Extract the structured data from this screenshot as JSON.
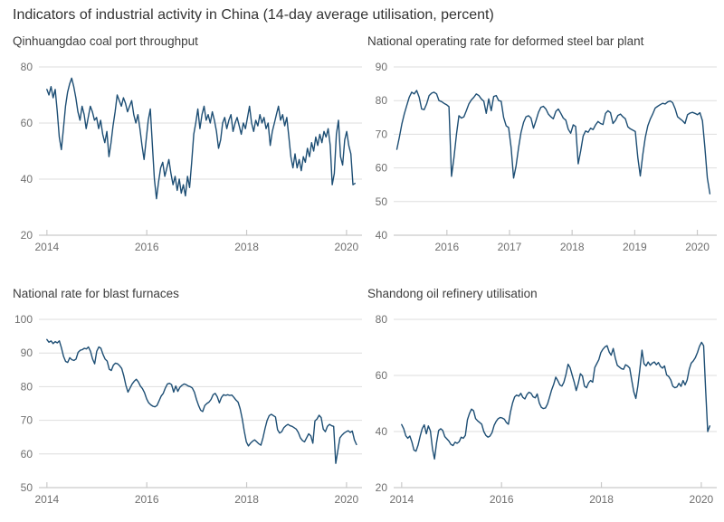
{
  "page": {
    "title": "Indicators of industrial activity in China (14-day average utilisation, percent)"
  },
  "colors": {
    "line": "#1d4e74",
    "grid": "#dedede",
    "axis": "#c9c9c9",
    "tick_label": "#6f6f6f",
    "title": "#333333",
    "subtitle": "#3d3d3d",
    "background": "#ffffff"
  },
  "chart_data": [
    {
      "type": "line",
      "title": "Qinhuangdao coal port throughput",
      "xlabel": "",
      "ylabel": "",
      "legend": "none",
      "grid": "horizontal",
      "xlim": [
        2013.84,
        2020.31
      ],
      "ylim": [
        20,
        80
      ],
      "x_ticks": [
        2014,
        2016,
        2018,
        2020
      ],
      "y_ticks": [
        20,
        40,
        60,
        80
      ],
      "x_start": 2014.0,
      "x_end": 2020.17,
      "values": [
        72,
        70,
        73,
        69,
        72,
        64,
        55,
        50.5,
        58,
        66,
        71,
        74,
        76,
        73,
        69,
        64,
        61,
        66,
        63,
        58,
        62,
        66,
        64,
        61,
        62,
        58,
        61,
        56,
        53,
        57,
        48,
        53,
        59,
        64,
        70,
        68,
        66,
        69,
        67,
        64,
        66,
        68,
        63,
        60,
        63,
        58,
        52,
        47,
        54,
        61,
        65,
        52,
        40,
        33,
        39,
        44,
        46,
        41,
        44,
        47,
        42,
        38,
        41,
        36,
        40,
        35,
        38,
        34,
        41,
        37,
        46,
        56,
        60,
        65,
        58,
        63,
        66,
        61,
        63,
        60,
        64,
        61,
        57,
        51,
        54,
        60,
        62,
        58,
        61,
        63,
        57,
        60,
        62,
        59,
        56,
        60,
        58,
        62,
        66,
        60,
        57,
        61,
        59,
        63,
        60,
        62,
        58,
        60,
        52,
        57,
        60,
        63,
        66,
        61,
        63,
        59,
        62,
        55,
        48,
        44,
        49,
        44,
        47,
        43,
        48,
        46,
        51,
        48,
        53,
        50,
        55,
        52,
        56,
        53,
        57,
        55,
        58,
        52,
        38,
        42,
        56,
        61,
        48,
        45,
        54,
        57,
        52,
        49,
        38,
        38.5
      ]
    },
    {
      "type": "line",
      "title": "National operating rate for deformed steel bar plant",
      "xlabel": "",
      "ylabel": "",
      "legend": "none",
      "grid": "horizontal",
      "xlim": [
        2015.15,
        2020.31
      ],
      "ylim": [
        40,
        90
      ],
      "x_ticks": [
        2016,
        2017,
        2018,
        2019,
        2020
      ],
      "y_ticks": [
        40,
        50,
        60,
        70,
        80,
        90
      ],
      "x_start": 2015.2,
      "x_end": 2020.2,
      "values": [
        65.5,
        69,
        73,
        76,
        78.5,
        81,
        82.5,
        82,
        83,
        81,
        77.5,
        77.3,
        79,
        81.5,
        82.2,
        82.5,
        82,
        80,
        79.7,
        79.2,
        78.8,
        78.2,
        57.5,
        63,
        70,
        75.5,
        74.8,
        75.2,
        77,
        79,
        80.2,
        81,
        82,
        81.5,
        80.5,
        79.8,
        76.2,
        80.5,
        77,
        81.2,
        81.5,
        80,
        79.8,
        75,
        72.5,
        72,
        66,
        57,
        60.5,
        66,
        70.5,
        73.5,
        75.2,
        75.5,
        74.8,
        71.8,
        74,
        76.5,
        78,
        78.3,
        77.5,
        76,
        75.2,
        74.6,
        76.8,
        77.5,
        76.2,
        74.8,
        74.2,
        71.5,
        70.3,
        72.8,
        72.3,
        61.2,
        65,
        69.5,
        71,
        70.6,
        71.8,
        71.4,
        72.8,
        73.8,
        73.2,
        72.9,
        76.2,
        77,
        76.4,
        73.2,
        74.1,
        75.6,
        76,
        75.2,
        74.6,
        72.2,
        71.6,
        71.2,
        70.8,
        63,
        57.6,
        64,
        69,
        72.5,
        74.5,
        76,
        77.8,
        78.3,
        78.8,
        79.2,
        79,
        79.6,
        79.9,
        79.4,
        77.6,
        75.2,
        74.6,
        74,
        73.2,
        75.8,
        76.3,
        76.5,
        76.2,
        75.8,
        76.4,
        74,
        66,
        57,
        52.3
      ]
    },
    {
      "type": "line",
      "title": "National rate for blast furnaces",
      "xlabel": "",
      "ylabel": "",
      "legend": "none",
      "grid": "horizontal",
      "xlim": [
        2013.84,
        2020.31
      ],
      "ylim": [
        50,
        100
      ],
      "x_ticks": [
        2014,
        2016,
        2018,
        2020
      ],
      "y_ticks": [
        50,
        60,
        70,
        80,
        90,
        100
      ],
      "x_start": 2014.0,
      "x_end": 2020.2,
      "values": [
        94,
        93.2,
        93.6,
        92.8,
        93.4,
        93,
        93.6,
        91.5,
        89,
        87.5,
        87.2,
        88.6,
        88,
        87.8,
        88.2,
        90.2,
        90.8,
        91,
        91.4,
        91.2,
        91.8,
        90.5,
        88.2,
        86.8,
        90.5,
        91.8,
        91.4,
        89.6,
        88.2,
        87.6,
        85.2,
        84.8,
        86.4,
        87,
        86.8,
        86.2,
        85.4,
        83.2,
        80.4,
        78.4,
        79.6,
        80.8,
        81.6,
        82.2,
        81.4,
        80.2,
        79.4,
        78.2,
        76.4,
        75.2,
        74.6,
        74.2,
        74,
        74.4,
        75.8,
        77.2,
        78,
        79.6,
        80.8,
        81,
        80.6,
        78.4,
        80.2,
        78.6,
        79.8,
        80.4,
        80.8,
        80.6,
        80.2,
        80,
        79.6,
        78.4,
        76.2,
        74.4,
        73,
        72.6,
        74.4,
        75,
        75.4,
        76.2,
        77.6,
        78,
        77,
        75.2,
        76.8,
        77.6,
        77.4,
        77.6,
        77.4,
        77.5,
        76.8,
        76,
        75.4,
        73.4,
        70.4,
        66.8,
        63.6,
        62.4,
        63.2,
        63.8,
        64.2,
        63.6,
        63,
        62.6,
        64.8,
        67.6,
        70,
        71.4,
        71.8,
        71.4,
        71,
        67.2,
        66.2,
        66.6,
        67.8,
        68.4,
        68.8,
        68.4,
        68.2,
        67.8,
        67.4,
        66.4,
        64.8,
        64,
        63.6,
        64.8,
        66,
        65.4,
        63.2,
        69.8,
        70.4,
        71.5,
        70.8,
        67.4,
        66.6,
        68.2,
        68.8,
        68.4,
        68.2,
        57.2,
        61,
        64.8,
        65.6,
        66.2,
        66.6,
        66.9,
        66.4,
        66.8,
        64.2,
        62.8
      ]
    },
    {
      "type": "line",
      "title": "Shandong oil refinery utilisation",
      "xlabel": "",
      "ylabel": "",
      "legend": "none",
      "grid": "horizontal",
      "xlim": [
        2013.84,
        2020.31
      ],
      "ylim": [
        20,
        80
      ],
      "x_ticks": [
        2014,
        2016,
        2018,
        2020
      ],
      "y_ticks": [
        20,
        40,
        60,
        80
      ],
      "x_start": 2014.0,
      "x_end": 2020.17,
      "values": [
        42.5,
        41,
        38.5,
        37.6,
        38.4,
        36.2,
        33.4,
        33,
        35.2,
        38.4,
        41,
        42.4,
        39.2,
        42,
        40.2,
        33.8,
        30.2,
        36,
        40.4,
        41,
        40.4,
        38.2,
        37.4,
        36.6,
        35.4,
        35,
        36.2,
        35.8,
        36.4,
        38,
        37.6,
        38.6,
        44.2,
        46.4,
        48,
        47.4,
        44.6,
        43.8,
        43.2,
        42.6,
        40,
        38.6,
        38,
        38.4,
        39.6,
        42.2,
        43.6,
        44.6,
        45,
        44.8,
        44.4,
        43.2,
        42.6,
        47,
        50.2,
        52.4,
        53,
        52.6,
        53.6,
        52.2,
        51.6,
        53.2,
        54,
        53.6,
        52.4,
        52,
        53.4,
        50.2,
        48.6,
        48.2,
        48.4,
        49.8,
        52.2,
        54.8,
        56.8,
        59.4,
        58.2,
        56.6,
        56.2,
        57.6,
        60.4,
        64,
        62.8,
        60.2,
        57.6,
        54.6,
        57.2,
        60.6,
        59.8,
        56.2,
        55.6,
        57.4,
        58.2,
        57.6,
        62.8,
        64.2,
        65.6,
        68.2,
        69.4,
        70.2,
        70.6,
        68.4,
        67.2,
        69.6,
        66.2,
        63.6,
        63,
        62.4,
        62.2,
        63.8,
        63.4,
        62.6,
        58.4,
        54.2,
        51.8,
        56.2,
        62.4,
        69,
        64.2,
        63.4,
        64.8,
        63.6,
        64.4,
        64.8,
        63.8,
        64.6,
        63.2,
        62.6,
        63.4,
        60.2,
        59.6,
        58.4,
        56.2,
        55.6,
        55.9,
        57.2,
        56.1,
        58.2,
        56.6,
        58.4,
        62.2,
        64.4,
        65.2,
        66.4,
        68.2,
        70.4,
        71.8,
        70.6,
        55,
        40,
        42
      ]
    }
  ]
}
